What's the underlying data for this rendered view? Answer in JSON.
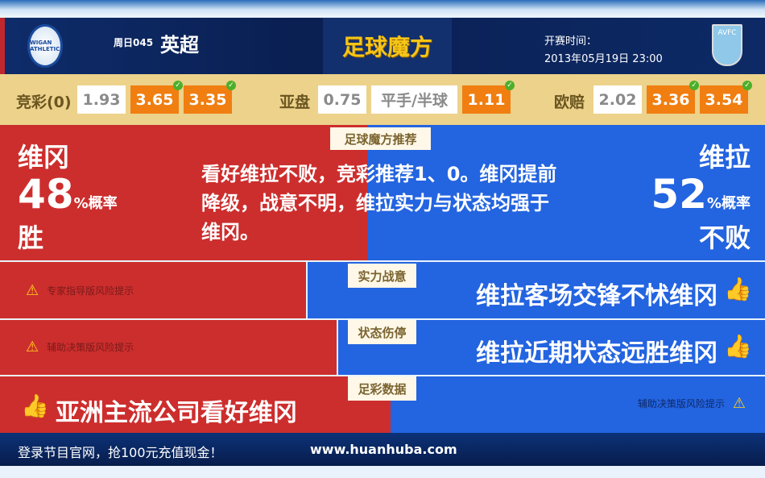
{
  "header": {
    "home_crest": "WIGAN ATHLETIC",
    "league_code": "周日045",
    "league": "英超",
    "logo": "足球魔方",
    "kickoff_label": "开赛时间：",
    "kickoff_time": "2013年05月19日 23:00",
    "away_crest": "AVFC"
  },
  "odds": {
    "jingcai": {
      "label": "竞彩(0)",
      "values": [
        "1.93",
        "3.65",
        "3.35"
      ]
    },
    "yapan": {
      "label": "亚盘",
      "values": [
        "0.75",
        "平手/半球",
        "1.11"
      ]
    },
    "oupei": {
      "label": "欧赔",
      "values": [
        "2.02",
        "3.36",
        "3.54"
      ]
    }
  },
  "recommend": {
    "tag": "足球魔方推荐",
    "home_name": "维冈",
    "home_pct": "48",
    "pct_suffix": "%概率",
    "home_result": "胜",
    "away_name": "维拉",
    "away_pct": "52",
    "away_result": "不败",
    "text": "看好维拉不败，竞彩推荐1、0。维冈提前降级，战意不明，维拉实力与状态均强于维冈。",
    "home_prob": 48,
    "away_prob": 52
  },
  "rows": [
    {
      "tag": "实力战意",
      "left": "专家指导版风险提示",
      "right": "维拉客场交锋不怵维冈"
    },
    {
      "tag": "状态伤停",
      "left": "辅助决策版风险提示",
      "right": "维拉近期状态远胜维冈"
    },
    {
      "tag": "足彩数据",
      "left": "亚洲主流公司看好维冈",
      "right": "辅助决策版风险提示"
    }
  ],
  "footer": {
    "promo": "登录节目官网，抢100元充值现金！",
    "url": "www.huanhuba.com"
  },
  "colors": {
    "home": "#cc2e2d",
    "away": "#2364e0",
    "highlight": "#f07e10"
  }
}
